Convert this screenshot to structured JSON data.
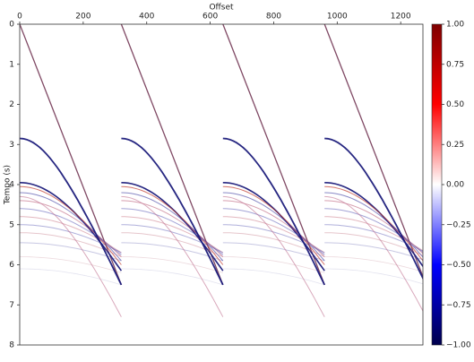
{
  "chart_data": {
    "type": "heatmap",
    "xlabel": "Offset",
    "ylabel": "Tempo (s)",
    "xlim": [
      0,
      1270
    ],
    "ylim": [
      8,
      0
    ],
    "xticks": [
      0,
      200,
      400,
      600,
      800,
      1000,
      1200
    ],
    "yticks": [
      0,
      1,
      2,
      3,
      4,
      5,
      6,
      7,
      8
    ],
    "colorbar": {
      "clim": [
        -1,
        1
      ],
      "colors": [
        "#00004c",
        "#0000ff",
        "#ffffff",
        "#ff0000",
        "#7f0000"
      ],
      "ticks": [
        {
          "value": 1,
          "label": "1.00"
        },
        0.75,
        {
          "value": 0.5,
          "label": "0.50"
        },
        0.25,
        {
          "value": 0,
          "label": "0.00"
        },
        {
          "value": -0.25,
          "label": "−0.25"
        },
        {
          "value": -0.5,
          "label": "−0.50"
        },
        {
          "value": -0.75,
          "label": "−0.75"
        },
        {
          "value": -1,
          "label": "−1.00"
        }
      ]
    }
  }
}
